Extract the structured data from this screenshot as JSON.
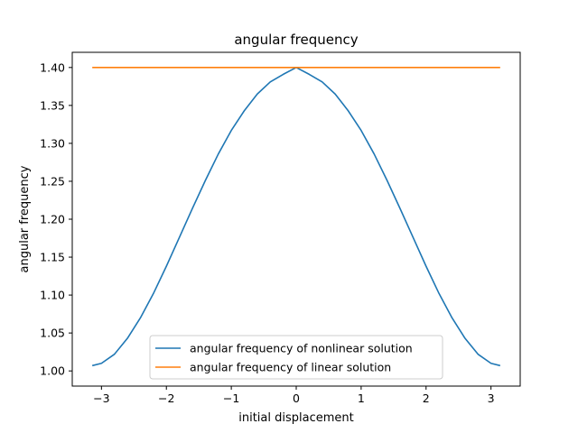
{
  "chart_data": {
    "type": "line",
    "title": "angular frequency",
    "xlabel": "initial displacement",
    "ylabel": "angular frequency",
    "xlim": [
      -3.45,
      3.45
    ],
    "ylim": [
      0.98,
      1.42
    ],
    "xticks": [
      -3,
      -2,
      -1,
      0,
      1,
      2,
      3
    ],
    "xtick_labels": [
      "−3",
      "−2",
      "−1",
      "0",
      "1",
      "2",
      "3"
    ],
    "yticks": [
      1.0,
      1.05,
      1.1,
      1.15,
      1.2,
      1.25,
      1.3,
      1.35,
      1.4
    ],
    "ytick_labels": [
      "1.00",
      "1.05",
      "1.10",
      "1.15",
      "1.20",
      "1.25",
      "1.30",
      "1.35",
      "1.40"
    ],
    "grid": false,
    "legend_position": "lower-center",
    "series": [
      {
        "name": "angular frequency of nonlinear solution",
        "color": "#1f77b4",
        "x": [
          -3.1416,
          -3.0,
          -2.8,
          -2.6,
          -2.4,
          -2.2,
          -2.0,
          -1.8,
          -1.6,
          -1.4,
          -1.2,
          -1.0,
          -0.8,
          -0.6,
          -0.4,
          -0.2,
          0.0,
          0.2,
          0.4,
          0.6,
          0.8,
          1.0,
          1.2,
          1.4,
          1.6,
          1.8,
          2.0,
          2.2,
          2.4,
          2.6,
          2.8,
          3.0,
          3.1416
        ],
        "y": [
          1.007,
          1.01,
          1.022,
          1.043,
          1.07,
          1.102,
          1.138,
          1.176,
          1.214,
          1.251,
          1.286,
          1.317,
          1.343,
          1.365,
          1.381,
          1.391,
          1.4,
          1.391,
          1.381,
          1.365,
          1.343,
          1.317,
          1.286,
          1.251,
          1.214,
          1.176,
          1.138,
          1.102,
          1.07,
          1.043,
          1.022,
          1.01,
          1.007
        ]
      },
      {
        "name": "angular frequency of linear solution",
        "color": "#ff7f0e",
        "x": [
          -3.1416,
          3.1416
        ],
        "y": [
          1.4,
          1.4
        ]
      }
    ]
  }
}
